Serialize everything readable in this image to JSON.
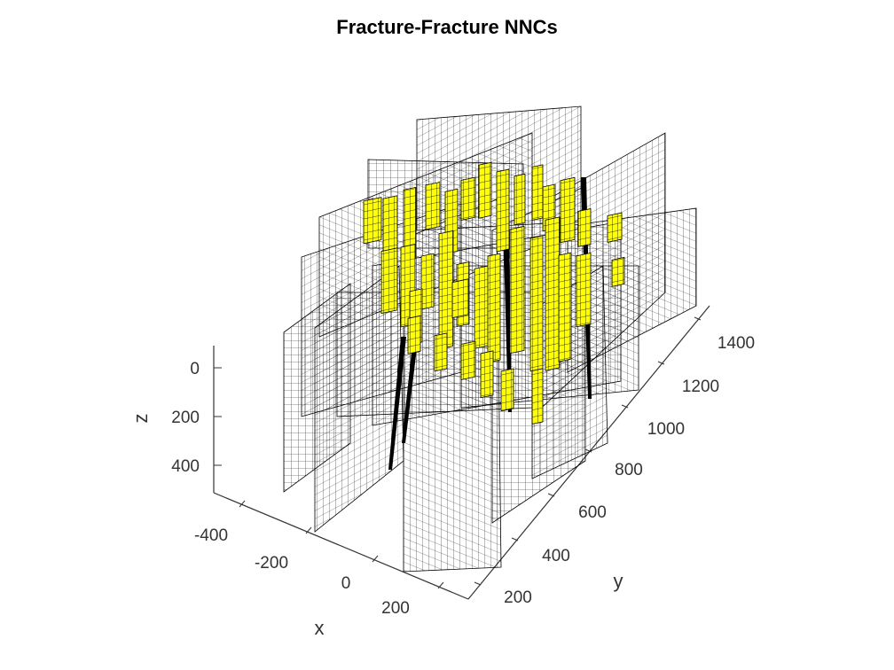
{
  "chart_data": {
    "type": "3d-surface",
    "title": "Fracture-Fracture NNCs",
    "xlabel": "x",
    "ylabel": "y",
    "zlabel": "z",
    "x_ticks": [
      "-400",
      "-200",
      "0",
      "200"
    ],
    "y_ticks": [
      "200",
      "400",
      "600",
      "800",
      "1000",
      "1200",
      "1400"
    ],
    "z_ticks": [
      "0",
      "200",
      "400"
    ],
    "z_reversed": true,
    "grid": false,
    "colors": {
      "fracture_mesh": "#000000",
      "nnc_cells": "#ffff00",
      "axes": "#333333"
    },
    "series": [
      {
        "name": "",
        "description": "fracture planes (wireframe mesh)"
      },
      {
        "name": "",
        "description": "fracture-fracture NNC cells (yellow)"
      }
    ]
  }
}
